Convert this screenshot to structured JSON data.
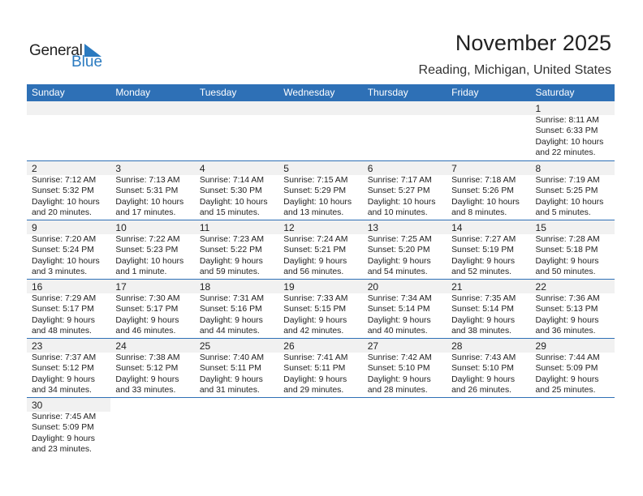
{
  "logo": {
    "word1": "General",
    "word2": "Blue",
    "color": "#2a7ac0"
  },
  "title": "November 2025",
  "location": "Reading, Michigan, United States",
  "header_color": "#2e70b6",
  "days": [
    "Sunday",
    "Monday",
    "Tuesday",
    "Wednesday",
    "Thursday",
    "Friday",
    "Saturday"
  ],
  "weeks": [
    [
      null,
      null,
      null,
      null,
      null,
      null,
      {
        "d": "1",
        "rise": "Sunrise: 8:11 AM",
        "set": "Sunset: 6:33 PM",
        "day1": "Daylight: 10 hours",
        "day2": "and 22 minutes."
      }
    ],
    [
      {
        "d": "2",
        "rise": "Sunrise: 7:12 AM",
        "set": "Sunset: 5:32 PM",
        "day1": "Daylight: 10 hours",
        "day2": "and 20 minutes."
      },
      {
        "d": "3",
        "rise": "Sunrise: 7:13 AM",
        "set": "Sunset: 5:31 PM",
        "day1": "Daylight: 10 hours",
        "day2": "and 17 minutes."
      },
      {
        "d": "4",
        "rise": "Sunrise: 7:14 AM",
        "set": "Sunset: 5:30 PM",
        "day1": "Daylight: 10 hours",
        "day2": "and 15 minutes."
      },
      {
        "d": "5",
        "rise": "Sunrise: 7:15 AM",
        "set": "Sunset: 5:29 PM",
        "day1": "Daylight: 10 hours",
        "day2": "and 13 minutes."
      },
      {
        "d": "6",
        "rise": "Sunrise: 7:17 AM",
        "set": "Sunset: 5:27 PM",
        "day1": "Daylight: 10 hours",
        "day2": "and 10 minutes."
      },
      {
        "d": "7",
        "rise": "Sunrise: 7:18 AM",
        "set": "Sunset: 5:26 PM",
        "day1": "Daylight: 10 hours",
        "day2": "and 8 minutes."
      },
      {
        "d": "8",
        "rise": "Sunrise: 7:19 AM",
        "set": "Sunset: 5:25 PM",
        "day1": "Daylight: 10 hours",
        "day2": "and 5 minutes."
      }
    ],
    [
      {
        "d": "9",
        "rise": "Sunrise: 7:20 AM",
        "set": "Sunset: 5:24 PM",
        "day1": "Daylight: 10 hours",
        "day2": "and 3 minutes."
      },
      {
        "d": "10",
        "rise": "Sunrise: 7:22 AM",
        "set": "Sunset: 5:23 PM",
        "day1": "Daylight: 10 hours",
        "day2": "and 1 minute."
      },
      {
        "d": "11",
        "rise": "Sunrise: 7:23 AM",
        "set": "Sunset: 5:22 PM",
        "day1": "Daylight: 9 hours",
        "day2": "and 59 minutes."
      },
      {
        "d": "12",
        "rise": "Sunrise: 7:24 AM",
        "set": "Sunset: 5:21 PM",
        "day1": "Daylight: 9 hours",
        "day2": "and 56 minutes."
      },
      {
        "d": "13",
        "rise": "Sunrise: 7:25 AM",
        "set": "Sunset: 5:20 PM",
        "day1": "Daylight: 9 hours",
        "day2": "and 54 minutes."
      },
      {
        "d": "14",
        "rise": "Sunrise: 7:27 AM",
        "set": "Sunset: 5:19 PM",
        "day1": "Daylight: 9 hours",
        "day2": "and 52 minutes."
      },
      {
        "d": "15",
        "rise": "Sunrise: 7:28 AM",
        "set": "Sunset: 5:18 PM",
        "day1": "Daylight: 9 hours",
        "day2": "and 50 minutes."
      }
    ],
    [
      {
        "d": "16",
        "rise": "Sunrise: 7:29 AM",
        "set": "Sunset: 5:17 PM",
        "day1": "Daylight: 9 hours",
        "day2": "and 48 minutes."
      },
      {
        "d": "17",
        "rise": "Sunrise: 7:30 AM",
        "set": "Sunset: 5:17 PM",
        "day1": "Daylight: 9 hours",
        "day2": "and 46 minutes."
      },
      {
        "d": "18",
        "rise": "Sunrise: 7:31 AM",
        "set": "Sunset: 5:16 PM",
        "day1": "Daylight: 9 hours",
        "day2": "and 44 minutes."
      },
      {
        "d": "19",
        "rise": "Sunrise: 7:33 AM",
        "set": "Sunset: 5:15 PM",
        "day1": "Daylight: 9 hours",
        "day2": "and 42 minutes."
      },
      {
        "d": "20",
        "rise": "Sunrise: 7:34 AM",
        "set": "Sunset: 5:14 PM",
        "day1": "Daylight: 9 hours",
        "day2": "and 40 minutes."
      },
      {
        "d": "21",
        "rise": "Sunrise: 7:35 AM",
        "set": "Sunset: 5:14 PM",
        "day1": "Daylight: 9 hours",
        "day2": "and 38 minutes."
      },
      {
        "d": "22",
        "rise": "Sunrise: 7:36 AM",
        "set": "Sunset: 5:13 PM",
        "day1": "Daylight: 9 hours",
        "day2": "and 36 minutes."
      }
    ],
    [
      {
        "d": "23",
        "rise": "Sunrise: 7:37 AM",
        "set": "Sunset: 5:12 PM",
        "day1": "Daylight: 9 hours",
        "day2": "and 34 minutes."
      },
      {
        "d": "24",
        "rise": "Sunrise: 7:38 AM",
        "set": "Sunset: 5:12 PM",
        "day1": "Daylight: 9 hours",
        "day2": "and 33 minutes."
      },
      {
        "d": "25",
        "rise": "Sunrise: 7:40 AM",
        "set": "Sunset: 5:11 PM",
        "day1": "Daylight: 9 hours",
        "day2": "and 31 minutes."
      },
      {
        "d": "26",
        "rise": "Sunrise: 7:41 AM",
        "set": "Sunset: 5:11 PM",
        "day1": "Daylight: 9 hours",
        "day2": "and 29 minutes."
      },
      {
        "d": "27",
        "rise": "Sunrise: 7:42 AM",
        "set": "Sunset: 5:10 PM",
        "day1": "Daylight: 9 hours",
        "day2": "and 28 minutes."
      },
      {
        "d": "28",
        "rise": "Sunrise: 7:43 AM",
        "set": "Sunset: 5:10 PM",
        "day1": "Daylight: 9 hours",
        "day2": "and 26 minutes."
      },
      {
        "d": "29",
        "rise": "Sunrise: 7:44 AM",
        "set": "Sunset: 5:09 PM",
        "day1": "Daylight: 9 hours",
        "day2": "and 25 minutes."
      }
    ],
    [
      {
        "d": "30",
        "rise": "Sunrise: 7:45 AM",
        "set": "Sunset: 5:09 PM",
        "day1": "Daylight: 9 hours",
        "day2": "and 23 minutes."
      }
    ]
  ]
}
